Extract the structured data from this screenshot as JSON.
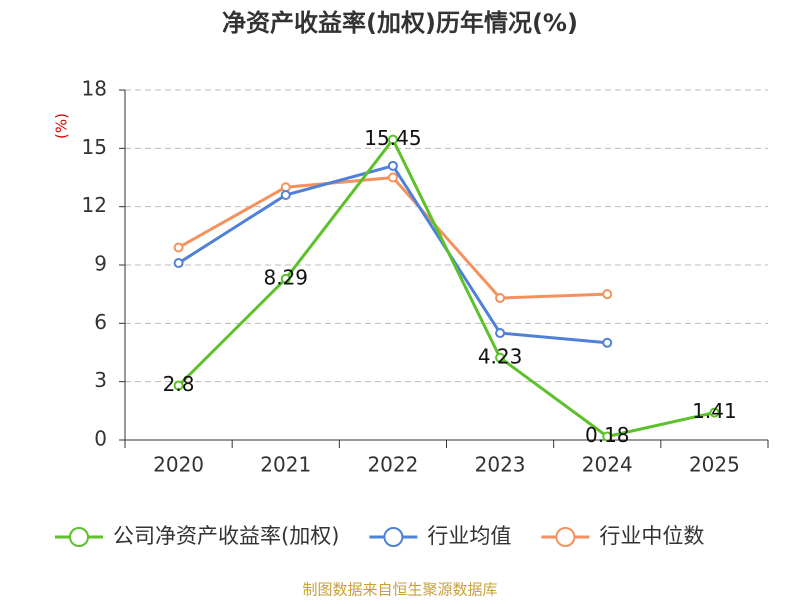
{
  "chart_data": {
    "type": "line",
    "title": "净资产收益率(加权)历年情况(%)",
    "y_label": "(%)",
    "categories": [
      "2020",
      "2021",
      "2022",
      "2023",
      "2024",
      "2025"
    ],
    "series": [
      {
        "name": "公司净资产收益率(加权)",
        "color": "#5cc12a",
        "values": [
          2.8,
          8.29,
          15.45,
          4.23,
          0.18,
          1.41
        ],
        "show_labels": true
      },
      {
        "name": "行业均值",
        "color": "#4f81d9",
        "values": [
          9.1,
          12.6,
          14.1,
          5.5,
          5.0,
          null
        ]
      },
      {
        "name": "行业中位数",
        "color": "#f5915c",
        "values": [
          9.9,
          13.0,
          13.5,
          7.3,
          7.5,
          null
        ]
      }
    ],
    "ylim": [
      0,
      18
    ],
    "yticks": [
      0,
      3,
      6,
      9,
      12,
      15,
      18
    ],
    "grid": true,
    "source": "制图数据来自恒生聚源数据库"
  }
}
